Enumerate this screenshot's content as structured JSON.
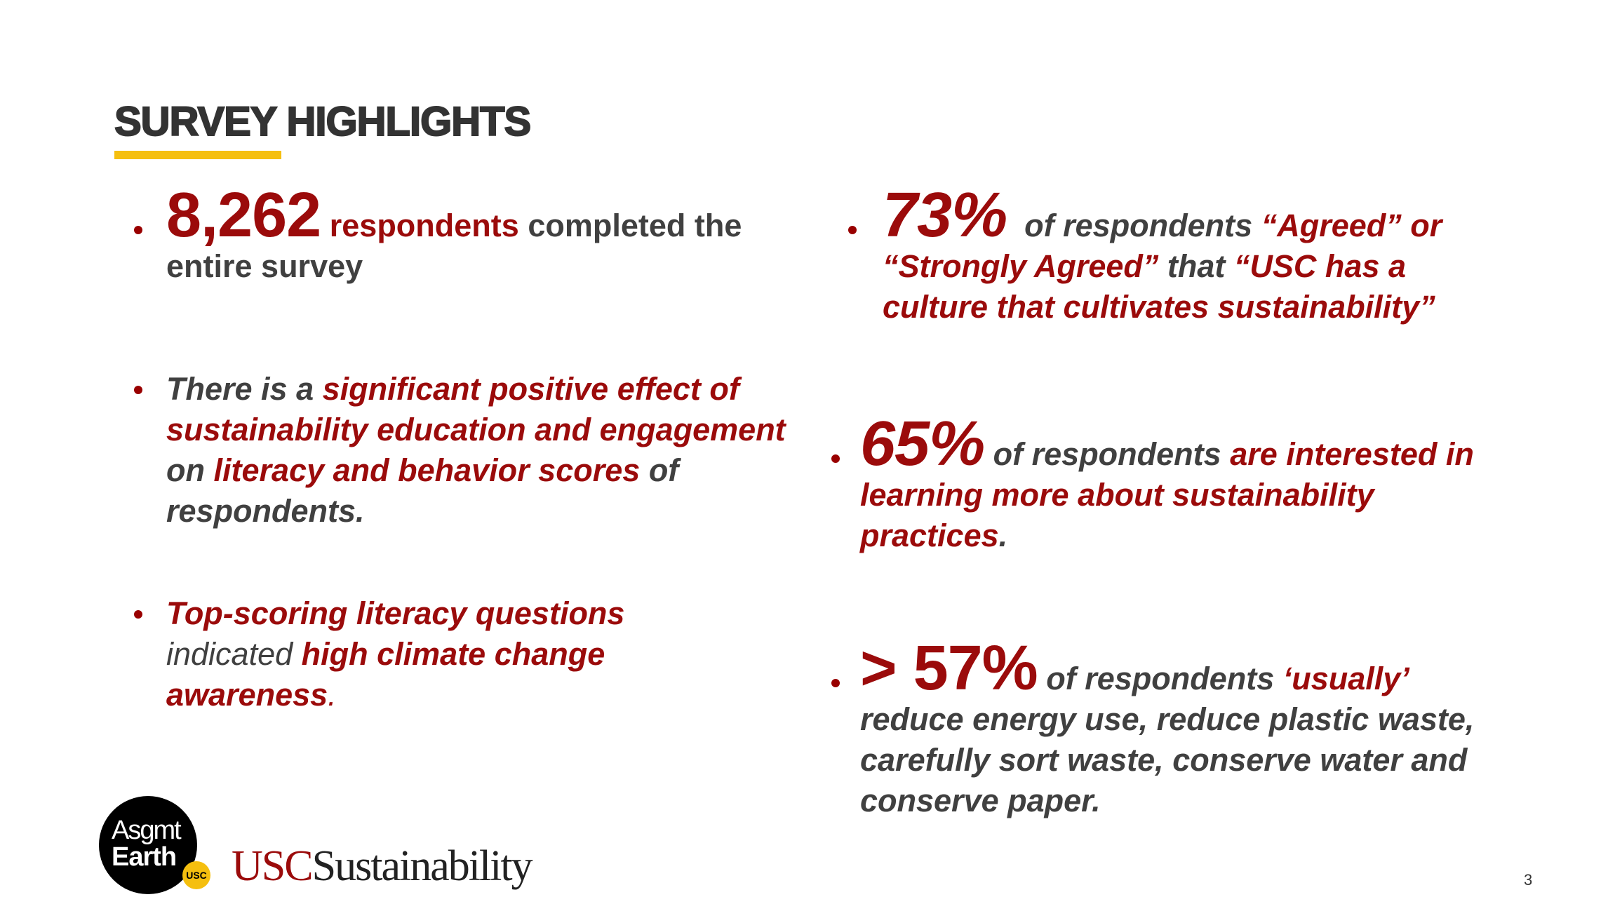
{
  "header": {
    "title": "SURVEY HIGHLIGHTS"
  },
  "left_bullets": [
    {
      "runs": [
        "8,262",
        "respondents",
        "completed the entire survey"
      ]
    },
    {
      "runs": [
        "There is a",
        "significant positive effect of sustainability education and engagement",
        "on",
        "literacy and behavior scores",
        "of respondents."
      ]
    },
    {
      "runs": [
        "Top-scoring literacy questions",
        "indicated",
        "high climate change awareness",
        "."
      ]
    }
  ],
  "right_bullets": [
    {
      "runs": [
        "73%",
        "of respondents",
        "“Agreed” or “Strongly Agreed”",
        "that",
        "“USC has a culture that cultivates sustainability”"
      ]
    },
    {
      "runs": [
        "65%",
        "of respondents",
        "are interested in learning more about sustainability practices",
        "."
      ]
    },
    {
      "runs": [
        "> 57%",
        "of respondents",
        "‘usually’",
        "reduce energy use, reduce plastic waste, carefully sort waste, conserve water and conserve paper."
      ]
    }
  ],
  "footer": {
    "logo_line1": "Asgmt",
    "logo_line2": "Earth",
    "logo_badge": "USC",
    "brand_usc": "USC",
    "brand_word": "Sustainability",
    "page_number": "3"
  }
}
